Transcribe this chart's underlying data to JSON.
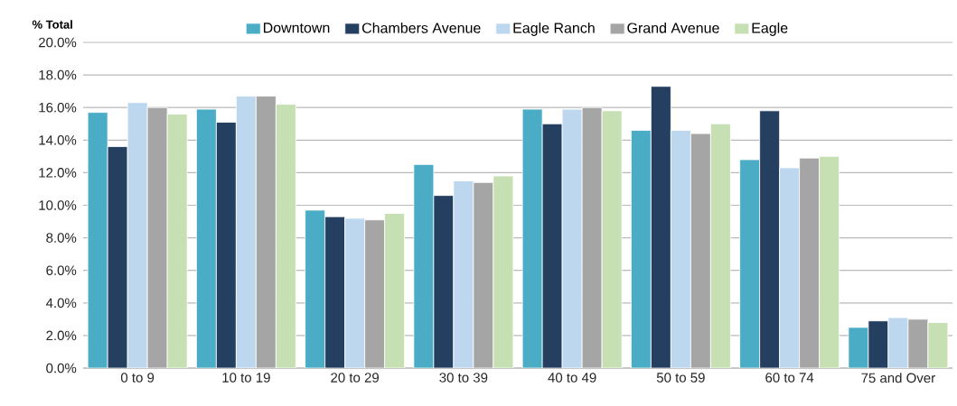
{
  "chart_data": {
    "type": "bar",
    "ylabel": "% Total",
    "categories": [
      "0 to 9",
      "10 to 19",
      "20 to 29",
      "30 to 39",
      "40 to 49",
      "50 to 59",
      "60 to 74",
      "75 and Over"
    ],
    "series": [
      {
        "name": "Downtown",
        "color": "#4bacc6",
        "values": [
          15.7,
          15.9,
          9.7,
          12.5,
          15.9,
          14.6,
          12.8,
          2.5
        ]
      },
      {
        "name": "Chambers Avenue",
        "color": "#243f60",
        "values": [
          13.6,
          15.1,
          9.3,
          10.6,
          15.0,
          17.3,
          15.8,
          2.9
        ]
      },
      {
        "name": "Eagle Ranch",
        "color": "#bdd7ee",
        "values": [
          16.3,
          16.7,
          9.2,
          11.5,
          15.9,
          14.6,
          12.3,
          3.1
        ]
      },
      {
        "name": "Grand Avenue",
        "color": "#a5a5a5",
        "values": [
          16.0,
          16.7,
          9.1,
          11.4,
          16.0,
          14.4,
          12.9,
          3.0
        ]
      },
      {
        "name": "Eagle",
        "color": "#c6e0b4",
        "values": [
          15.6,
          16.2,
          9.5,
          11.8,
          15.8,
          15.0,
          13.0,
          2.8
        ]
      }
    ],
    "ylim": [
      0,
      20
    ],
    "yticks": [
      {
        "value": 0,
        "label": "0.0%"
      },
      {
        "value": 2,
        "label": "2.0%"
      },
      {
        "value": 4,
        "label": "4.0%"
      },
      {
        "value": 6,
        "label": "6.0%"
      },
      {
        "value": 8,
        "label": "8.0%"
      },
      {
        "value": 10,
        "label": "10.0%"
      },
      {
        "value": 12,
        "label": "12.0%"
      },
      {
        "value": 14,
        "label": "14.0%"
      },
      {
        "value": 16,
        "label": "16.0%"
      },
      {
        "value": 18,
        "label": "18.0%"
      },
      {
        "value": 20,
        "label": "20.0%"
      }
    ],
    "grid": "y",
    "legend": "top"
  }
}
